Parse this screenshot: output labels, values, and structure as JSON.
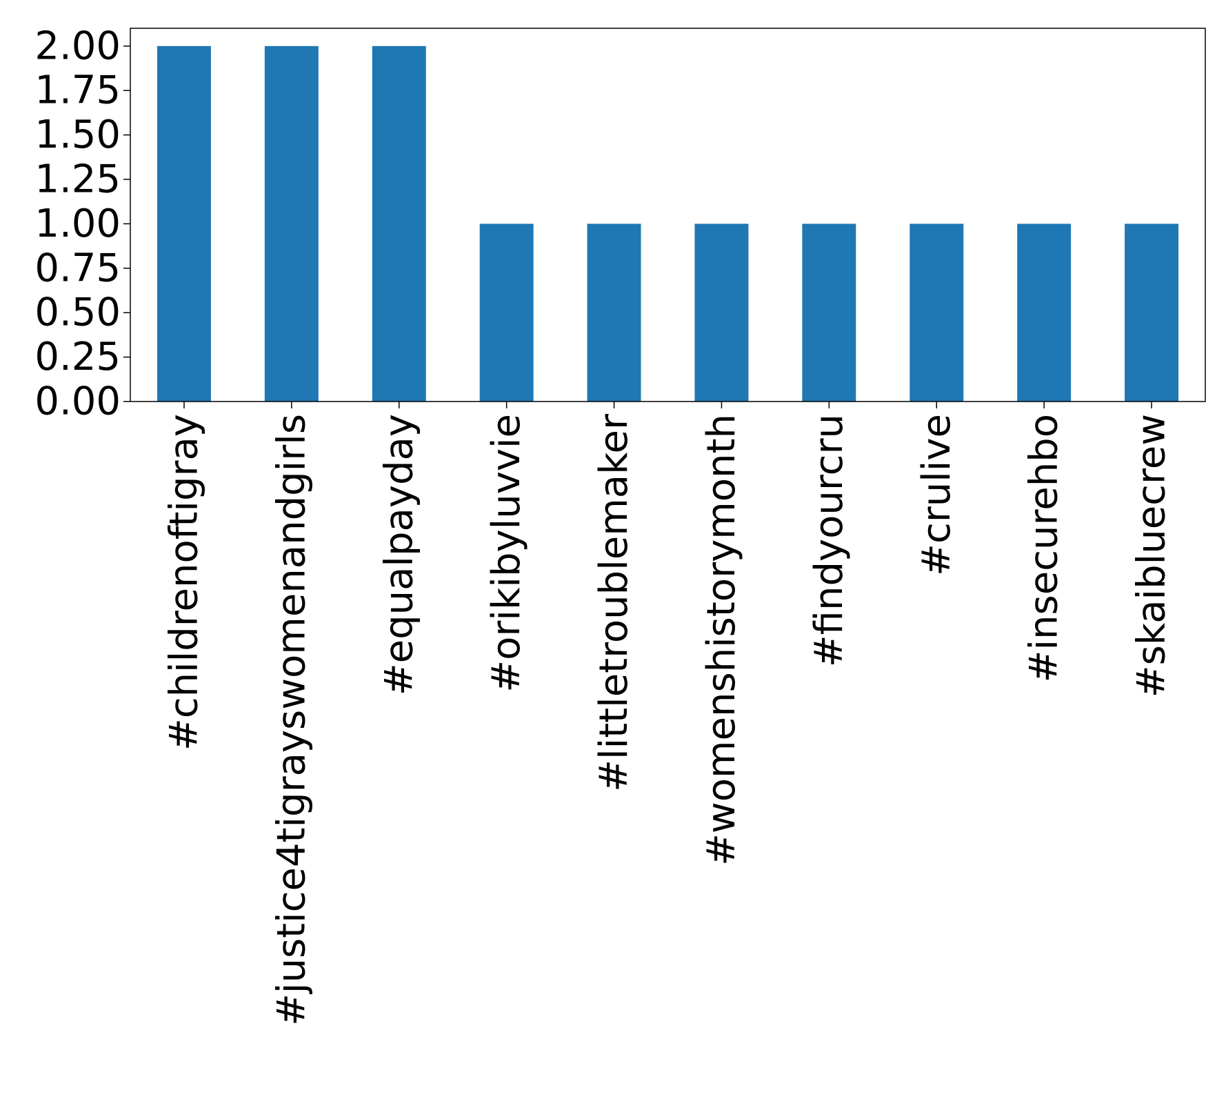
{
  "chart_data": {
    "type": "bar",
    "title": "",
    "xlabel": "",
    "ylabel": "",
    "categories": [
      "#childrenoftigray",
      "#justice4tigrayswomenandgirls",
      "#equalpayday",
      "#orikibyluvvie",
      "#littletroublemaker",
      "#womenshistorymonth",
      "#findyourcru",
      "#crulive",
      "#insecurehbo",
      "#skaibluecrew"
    ],
    "values": [
      2,
      2,
      2,
      1,
      1,
      1,
      1,
      1,
      1,
      1
    ],
    "ylim": [
      0,
      2.1
    ],
    "yticks": [
      0,
      0.25,
      0.5,
      0.75,
      1.0,
      1.25,
      1.5,
      1.75,
      2.0
    ],
    "ytick_labels": [
      "0.00",
      "0.25",
      "0.50",
      "0.75",
      "1.00",
      "1.25",
      "1.50",
      "1.75",
      "2.00"
    ],
    "bar_color": "#1f77b4",
    "grid": false,
    "legend": "none"
  }
}
